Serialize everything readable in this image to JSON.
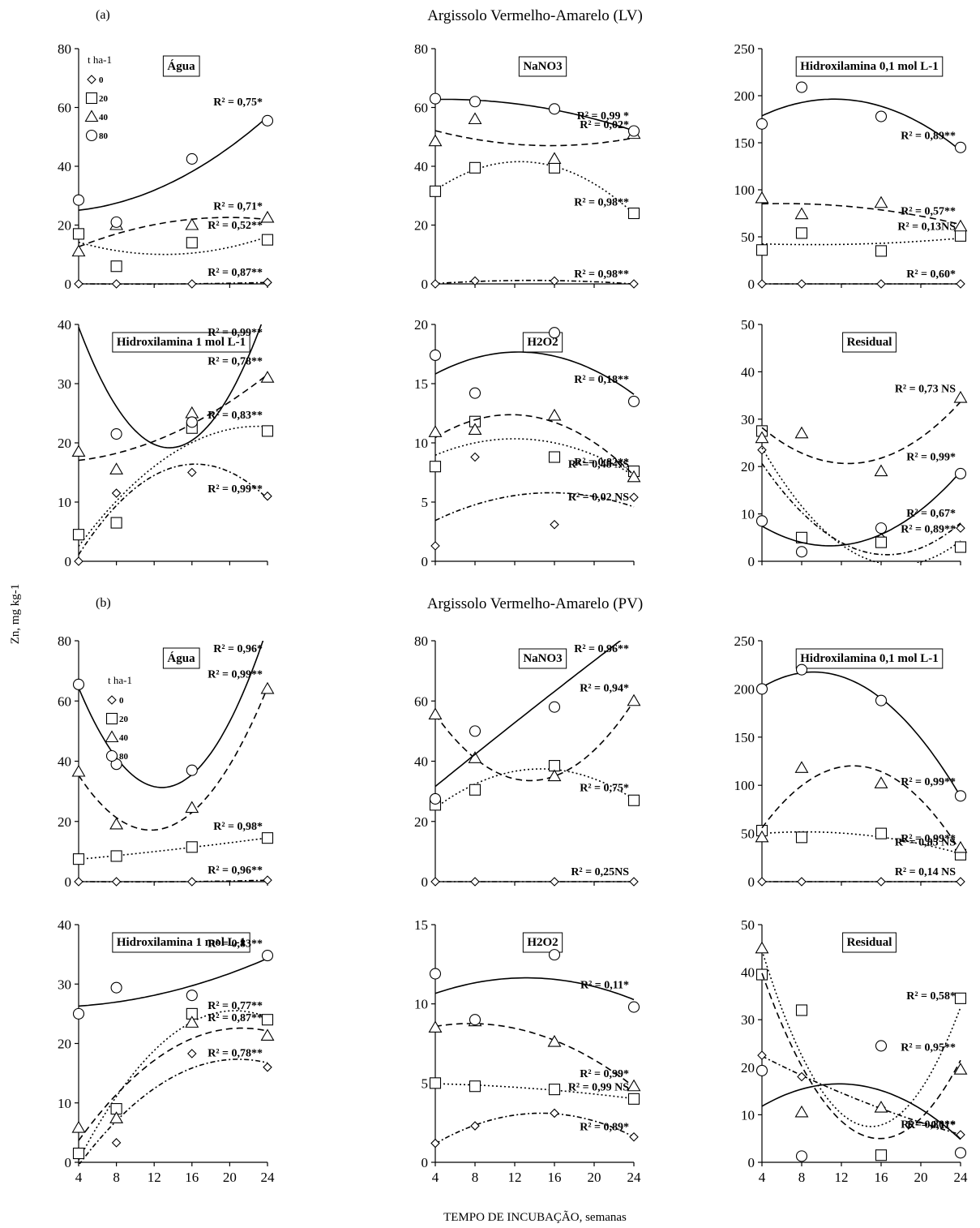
{
  "figure": {
    "panel_a_letter": "(a)",
    "panel_b_letter": "(b)",
    "section_a_title": "Argissolo Vermelho-Amarelo (LV)",
    "section_b_title": "Argissolo Vermelho-Amarelo (PV)",
    "ylabel": "Zn, mg kg-1",
    "xlabel": "TEMPO DE INCUBAÇÃO, semanas"
  },
  "legend": {
    "title": "t ha-1",
    "doses": [
      "0",
      "20",
      "40",
      "80"
    ],
    "markers": [
      "diamond",
      "square",
      "triangle",
      "circle"
    ]
  },
  "chart_data": [
    {
      "type": "scatter",
      "section": "LV",
      "title": "Água",
      "x": [
        4,
        8,
        16,
        24
      ],
      "ylim": [
        0,
        80
      ],
      "yticks": [
        0,
        20,
        40,
        60,
        80
      ],
      "series": [
        {
          "name": "0",
          "marker": "diamond",
          "values": [
            0,
            0,
            0,
            0.5
          ],
          "r2": "R² = 0,87**"
        },
        {
          "name": "20",
          "marker": "square",
          "values": [
            17,
            6,
            14,
            15
          ],
          "r2": "R² = 0,52**"
        },
        {
          "name": "40",
          "marker": "triangle",
          "values": [
            11,
            20,
            20,
            22.5
          ],
          "r2": "R² = 0,71*"
        },
        {
          "name": "80",
          "marker": "circle",
          "values": [
            28.5,
            21,
            42.5,
            55.5
          ],
          "r2": "R² = 0,75*"
        }
      ]
    },
    {
      "type": "scatter",
      "section": "LV",
      "title": "NaNO3",
      "x": [
        4,
        8,
        16,
        24
      ],
      "ylim": [
        0,
        80
      ],
      "yticks": [
        0,
        20,
        40,
        60,
        80
      ],
      "series": [
        {
          "name": "0",
          "marker": "diamond",
          "values": [
            0,
            1,
            1,
            0
          ],
          "r2": "R² = 0,98**"
        },
        {
          "name": "20",
          "marker": "square",
          "values": [
            31.5,
            39.5,
            39.5,
            24
          ],
          "r2": "R² = 0,98**"
        },
        {
          "name": "40",
          "marker": "triangle",
          "values": [
            48.5,
            56,
            42.5,
            51
          ],
          "r2": "R² = 0,02*"
        },
        {
          "name": "80",
          "marker": "circle",
          "values": [
            63,
            62,
            59.5,
            52
          ],
          "r2": "R² = 0,99 *"
        }
      ]
    },
    {
      "type": "scatter",
      "section": "LV",
      "title": "Hidroxilamina 0,1 mol L-1",
      "x": [
        4,
        8,
        16,
        24
      ],
      "ylim": [
        0,
        250
      ],
      "yticks": [
        0,
        50,
        100,
        150,
        200,
        250
      ],
      "series": [
        {
          "name": "0",
          "marker": "diamond",
          "values": [
            0,
            0,
            0,
            0
          ],
          "r2": "R² = 0,60*"
        },
        {
          "name": "20",
          "marker": "square",
          "values": [
            36,
            54,
            35,
            51
          ],
          "r2": "R² = 0,13NS"
        },
        {
          "name": "40",
          "marker": "triangle",
          "values": [
            91,
            74,
            86,
            61
          ],
          "r2": "R² = 0,57**"
        },
        {
          "name": "80",
          "marker": "circle",
          "values": [
            170,
            209,
            178,
            145
          ],
          "r2": "R² = 0,89**"
        }
      ]
    },
    {
      "type": "scatter",
      "section": "LV",
      "title": "Hidroxilamina 1 mol L-1",
      "x": [
        4,
        8,
        16,
        24
      ],
      "ylim": [
        0,
        40
      ],
      "yticks": [
        0,
        10,
        20,
        30,
        40
      ],
      "series": [
        {
          "name": "0",
          "marker": "diamond",
          "values": [
            0,
            11.5,
            15,
            11
          ],
          "r2": "R² = 0,99**"
        },
        {
          "name": "20",
          "marker": "square",
          "values": [
            4.5,
            6.5,
            22.5,
            22
          ],
          "r2": "R² = 0,83**"
        },
        {
          "name": "40",
          "marker": "triangle",
          "values": [
            18.5,
            15.5,
            25,
            31
          ],
          "r2": "R² = 0,78**"
        },
        {
          "name": "80",
          "marker": "circle",
          "values": [
            42,
            21.5,
            23.5,
            42
          ],
          "r2": "R² = 0,99**"
        }
      ]
    },
    {
      "type": "scatter",
      "section": "LV",
      "title": "H2O2",
      "x": [
        4,
        8,
        16,
        24
      ],
      "ylim": [
        0,
        20
      ],
      "yticks": [
        0,
        5,
        10,
        15,
        20
      ],
      "series": [
        {
          "name": "0",
          "marker": "diamond",
          "values": [
            1.3,
            8.8,
            3.1,
            5.4
          ],
          "r2": "R² = 0,02 NS"
        },
        {
          "name": "20",
          "marker": "square",
          "values": [
            8,
            11.8,
            8.8,
            7.6
          ],
          "r2": "R² = 0,48 NS"
        },
        {
          "name": "40",
          "marker": "triangle",
          "values": [
            10.9,
            11.1,
            12.3,
            7.1
          ],
          "r2": "R² = 0,82**"
        },
        {
          "name": "80",
          "marker": "circle",
          "values": [
            17.4,
            14.2,
            19.3,
            13.5
          ],
          "r2": "R² = 0,18**"
        }
      ]
    },
    {
      "type": "scatter",
      "section": "LV",
      "title": "Residual",
      "x": [
        4,
        8,
        16,
        24
      ],
      "ylim": [
        0,
        50
      ],
      "yticks": [
        0,
        10,
        20,
        30,
        40,
        50
      ],
      "series": [
        {
          "name": "0",
          "marker": "diamond",
          "values": [
            23.5,
            5,
            5,
            7
          ],
          "r2": "R² = 0,67*"
        },
        {
          "name": "20",
          "marker": "square",
          "values": [
            27.5,
            5,
            4,
            3
          ],
          "r2": "R² = 0,89**"
        },
        {
          "name": "40",
          "marker": "triangle",
          "values": [
            26,
            27,
            19,
            34.5
          ],
          "r2": "R² = 0,73 NS"
        },
        {
          "name": "80",
          "marker": "circle",
          "values": [
            8.5,
            2,
            7,
            18.5
          ],
          "r2": "R² = 0,99*"
        }
      ]
    },
    {
      "type": "scatter",
      "section": "PV",
      "title": "Água",
      "x": [
        4,
        8,
        16,
        24
      ],
      "ylim": [
        0,
        80
      ],
      "yticks": [
        0,
        20,
        40,
        60,
        80
      ],
      "series": [
        {
          "name": "0",
          "marker": "diamond",
          "values": [
            0,
            0,
            0,
            0.5
          ],
          "r2": "R² = 0,96**"
        },
        {
          "name": "20",
          "marker": "square",
          "values": [
            7.5,
            8.5,
            11.5,
            14.5
          ],
          "r2": "R² = 0,98*"
        },
        {
          "name": "40",
          "marker": "triangle",
          "values": [
            36.5,
            19,
            24.5,
            64
          ],
          "r2": "R² = 0,99**"
        },
        {
          "name": "80",
          "marker": "circle",
          "values": [
            65.5,
            39,
            37,
            84
          ],
          "r2": "R² = 0,96*"
        }
      ]
    },
    {
      "type": "scatter",
      "section": "PV",
      "title": "NaNO3",
      "x": [
        4,
        8,
        16,
        24
      ],
      "ylim": [
        0,
        80
      ],
      "yticks": [
        0,
        20,
        40,
        60,
        80
      ],
      "series": [
        {
          "name": "0",
          "marker": "diamond",
          "values": [
            0,
            0,
            0,
            0
          ],
          "r2": "R² = 0,25NS"
        },
        {
          "name": "20",
          "marker": "square",
          "values": [
            25.5,
            30.5,
            38.5,
            27
          ],
          "r2": "R² = 0,75*"
        },
        {
          "name": "40",
          "marker": "triangle",
          "values": [
            55.5,
            41,
            35,
            60
          ],
          "r2": "R² = 0,94*"
        },
        {
          "name": "80",
          "marker": "circle",
          "values": [
            27.5,
            50,
            58,
            85
          ],
          "r2": "R² = 0,96**"
        }
      ]
    },
    {
      "type": "scatter",
      "section": "PV",
      "title": "Hidroxilamina 0,1 mol L-1",
      "x": [
        4,
        8,
        16,
        24
      ],
      "ylim": [
        0,
        250
      ],
      "yticks": [
        0,
        50,
        100,
        150,
        200,
        250
      ],
      "series": [
        {
          "name": "0",
          "marker": "diamond",
          "values": [
            0,
            0,
            0,
            0
          ],
          "r2": "R² = 0,14 NS"
        },
        {
          "name": "20",
          "marker": "square",
          "values": [
            53,
            46,
            50,
            28
          ],
          "r2": "R² = 0,85 NS"
        },
        {
          "name": "40",
          "marker": "triangle",
          "values": [
            46,
            118,
            102,
            35
          ],
          "r2": "R² = 0,99**"
        },
        {
          "name": "80",
          "marker": "circle",
          "values": [
            200,
            220,
            188,
            89
          ],
          "r2": "R² = 0,99**"
        }
      ]
    },
    {
      "type": "scatter",
      "section": "PV",
      "title": "Hidroxilamina 1 mol L-1",
      "x": [
        4,
        8,
        16,
        24
      ],
      "ylim": [
        0,
        40
      ],
      "yticks": [
        0,
        10,
        20,
        30,
        40
      ],
      "series": [
        {
          "name": "0",
          "marker": "diamond",
          "values": [
            1.5,
            3.3,
            18.3,
            16
          ],
          "r2": "R² = 0,78**"
        },
        {
          "name": "20",
          "marker": "square",
          "values": [
            1.5,
            9,
            25,
            24
          ],
          "r2": "R² = 0,77**"
        },
        {
          "name": "40",
          "marker": "triangle",
          "values": [
            5.8,
            7.4,
            23.5,
            21.3
          ],
          "r2": "R² = 0,87**"
        },
        {
          "name": "80",
          "marker": "circle",
          "values": [
            25,
            29.4,
            28.1,
            34.8
          ],
          "r2": "R² = 0,83**"
        }
      ]
    },
    {
      "type": "scatter",
      "section": "PV",
      "title": "H2O2",
      "x": [
        4,
        8,
        16,
        24
      ],
      "ylim": [
        0,
        15
      ],
      "yticks": [
        0,
        5,
        10,
        15
      ],
      "series": [
        {
          "name": "0",
          "marker": "diamond",
          "values": [
            1.2,
            2.3,
            3.1,
            1.6
          ],
          "r2": "R² = 0,89*"
        },
        {
          "name": "20",
          "marker": "square",
          "values": [
            5,
            4.8,
            4.6,
            4
          ],
          "r2": "R² = 0,99 NS"
        },
        {
          "name": "40",
          "marker": "triangle",
          "values": [
            8.5,
            8.9,
            7.6,
            4.8
          ],
          "r2": "R² = 0,99*"
        },
        {
          "name": "80",
          "marker": "circle",
          "values": [
            11.9,
            9,
            13.1,
            9.8
          ],
          "r2": "R² = 0,11*"
        }
      ]
    },
    {
      "type": "scatter",
      "section": "PV",
      "title": "Residual",
      "x": [
        4,
        8,
        16,
        24
      ],
      "ylim": [
        0,
        50
      ],
      "yticks": [
        0,
        10,
        20,
        30,
        40,
        50
      ],
      "series": [
        {
          "name": "0",
          "marker": "diamond",
          "values": [
            22.5,
            18,
            11.5,
            5.8
          ],
          "r2": "R² = 0,80**"
        },
        {
          "name": "20",
          "marker": "square",
          "values": [
            39.5,
            32,
            1.5,
            34.5
          ],
          "r2": "R² = 0,58*"
        },
        {
          "name": "40",
          "marker": "triangle",
          "values": [
            45,
            10.5,
            11.5,
            19.5
          ],
          "r2": "R² = 0,95**"
        },
        {
          "name": "80",
          "marker": "circle",
          "values": [
            19.3,
            1.3,
            24.5,
            2
          ],
          "r2": "R² = 0,11*"
        }
      ]
    }
  ]
}
